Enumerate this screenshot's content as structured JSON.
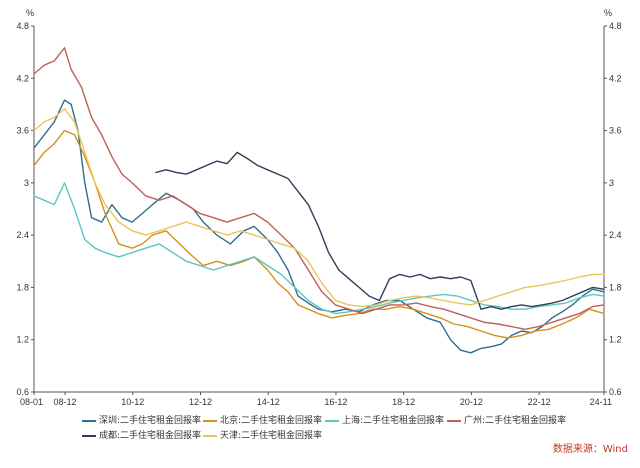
{
  "chart_data": {
    "type": "line",
    "y_unit_left": "%",
    "y_unit_right": "%",
    "ylim": [
      0.6,
      4.8
    ],
    "yticks": [
      "0.6",
      "1.2",
      "1.8",
      "2.4",
      "3",
      "3.6",
      "4.2",
      "4.8"
    ],
    "ytick_values": [
      0.6,
      1.2,
      1.8,
      2.4,
      3.0,
      3.6,
      4.2,
      4.8
    ],
    "x_ticks": [
      "08-01",
      "08-12",
      "10-12",
      "12-12",
      "14-12",
      "16-12",
      "18-12",
      "20-12",
      "22-12",
      "24-11"
    ],
    "x_tick_values": [
      2008.0,
      2008.917,
      2010.917,
      2012.917,
      2014.917,
      2016.917,
      2018.917,
      2020.917,
      2022.917,
      2024.833
    ],
    "xlim": [
      2008.0,
      2024.833
    ],
    "grid": false,
    "legend_position": "bottom",
    "series": [
      {
        "name": "深圳:二手住宅租金回报率",
        "color": "#2e6e8e",
        "x": [
          2008.0,
          2008.3,
          2008.6,
          2008.9,
          2009.1,
          2009.3,
          2009.5,
          2009.7,
          2010.0,
          2010.3,
          2010.6,
          2010.9,
          2011.2,
          2011.5,
          2011.9,
          2012.3,
          2012.7,
          2013.0,
          2013.4,
          2013.8,
          2014.2,
          2014.5,
          2014.9,
          2015.2,
          2015.5,
          2015.8,
          2016.1,
          2016.4,
          2016.8,
          2017.2,
          2017.6,
          2018.0,
          2018.4,
          2018.8,
          2019.2,
          2019.6,
          2020.0,
          2020.3,
          2020.6,
          2020.9,
          2021.2,
          2021.5,
          2021.8,
          2022.1,
          2022.4,
          2022.7,
          2023.0,
          2023.3,
          2023.6,
          2023.9,
          2024.2,
          2024.5,
          2024.833
        ],
        "values": [
          3.4,
          3.55,
          3.7,
          3.95,
          3.9,
          3.6,
          3.0,
          2.6,
          2.55,
          2.75,
          2.6,
          2.55,
          2.65,
          2.75,
          2.88,
          2.8,
          2.7,
          2.55,
          2.4,
          2.3,
          2.45,
          2.5,
          2.35,
          2.2,
          2.0,
          1.7,
          1.62,
          1.55,
          1.52,
          1.55,
          1.52,
          1.6,
          1.65,
          1.65,
          1.55,
          1.45,
          1.4,
          1.2,
          1.08,
          1.05,
          1.1,
          1.12,
          1.15,
          1.25,
          1.3,
          1.28,
          1.35,
          1.45,
          1.52,
          1.6,
          1.7,
          1.78,
          1.75
        ]
      },
      {
        "name": "北京:二手住宅租金回报率",
        "color": "#d4901c",
        "x": [
          2008.0,
          2008.3,
          2008.6,
          2008.9,
          2009.2,
          2009.5,
          2009.8,
          2010.1,
          2010.5,
          2010.9,
          2011.2,
          2011.5,
          2011.9,
          2012.3,
          2012.7,
          2013.0,
          2013.4,
          2013.8,
          2014.2,
          2014.5,
          2014.9,
          2015.2,
          2015.5,
          2015.8,
          2016.1,
          2016.4,
          2016.8,
          2017.2,
          2017.6,
          2018.0,
          2018.4,
          2018.8,
          2019.2,
          2019.6,
          2020.0,
          2020.4,
          2020.8,
          2021.2,
          2021.6,
          2022.0,
          2022.4,
          2022.8,
          2023.2,
          2023.6,
          2024.0,
          2024.4,
          2024.833
        ],
        "values": [
          3.2,
          3.35,
          3.45,
          3.6,
          3.55,
          3.3,
          3.0,
          2.65,
          2.3,
          2.25,
          2.3,
          2.4,
          2.45,
          2.3,
          2.15,
          2.05,
          2.1,
          2.05,
          2.1,
          2.15,
          2.0,
          1.85,
          1.75,
          1.6,
          1.55,
          1.5,
          1.45,
          1.48,
          1.5,
          1.55,
          1.55,
          1.58,
          1.55,
          1.5,
          1.45,
          1.38,
          1.35,
          1.3,
          1.25,
          1.22,
          1.25,
          1.3,
          1.32,
          1.38,
          1.45,
          1.55,
          1.5
        ]
      },
      {
        "name": "上海:二手住宅租金回报率",
        "color": "#5cc6c0",
        "x": [
          2008.0,
          2008.3,
          2008.6,
          2008.9,
          2009.2,
          2009.5,
          2009.8,
          2010.1,
          2010.5,
          2010.9,
          2011.3,
          2011.7,
          2012.1,
          2012.5,
          2012.9,
          2013.3,
          2013.7,
          2014.1,
          2014.5,
          2014.9,
          2015.3,
          2015.7,
          2016.1,
          2016.5,
          2016.9,
          2017.3,
          2017.7,
          2018.1,
          2018.5,
          2018.9,
          2019.3,
          2019.7,
          2020.1,
          2020.5,
          2020.9,
          2021.3,
          2021.7,
          2022.1,
          2022.5,
          2022.9,
          2023.3,
          2023.7,
          2024.1,
          2024.5,
          2024.833
        ],
        "values": [
          2.85,
          2.8,
          2.75,
          3.0,
          2.7,
          2.35,
          2.25,
          2.2,
          2.15,
          2.2,
          2.25,
          2.3,
          2.2,
          2.1,
          2.05,
          2.0,
          2.05,
          2.1,
          2.15,
          2.05,
          1.95,
          1.8,
          1.65,
          1.55,
          1.5,
          1.52,
          1.55,
          1.58,
          1.62,
          1.65,
          1.68,
          1.7,
          1.72,
          1.7,
          1.65,
          1.6,
          1.58,
          1.55,
          1.55,
          1.58,
          1.6,
          1.62,
          1.68,
          1.72,
          1.7
        ]
      },
      {
        "name": "广州:二手住宅租金回报率",
        "color": "#c0605a",
        "x": [
          2008.0,
          2008.3,
          2008.6,
          2008.9,
          2009.1,
          2009.4,
          2009.7,
          2010.0,
          2010.3,
          2010.6,
          2010.9,
          2011.3,
          2011.7,
          2012.1,
          2012.5,
          2012.9,
          2013.3,
          2013.7,
          2014.1,
          2014.5,
          2014.9,
          2015.3,
          2015.7,
          2016.1,
          2016.5,
          2016.9,
          2017.3,
          2017.7,
          2018.1,
          2018.5,
          2018.9,
          2019.3,
          2019.7,
          2020.1,
          2020.5,
          2020.9,
          2021.3,
          2021.7,
          2022.1,
          2022.5,
          2022.9,
          2023.3,
          2023.7,
          2024.1,
          2024.5,
          2024.833
        ],
        "values": [
          4.25,
          4.35,
          4.4,
          4.55,
          4.3,
          4.1,
          3.75,
          3.55,
          3.3,
          3.1,
          3.0,
          2.85,
          2.8,
          2.85,
          2.75,
          2.65,
          2.6,
          2.55,
          2.6,
          2.65,
          2.55,
          2.4,
          2.25,
          2.0,
          1.75,
          1.6,
          1.55,
          1.5,
          1.55,
          1.6,
          1.6,
          1.62,
          1.58,
          1.55,
          1.5,
          1.45,
          1.4,
          1.38,
          1.35,
          1.32,
          1.35,
          1.4,
          1.45,
          1.5,
          1.58,
          1.6
        ]
      },
      {
        "name": "成都:二手住宅租金回报率",
        "color": "#2e3e5c",
        "x": [
          2011.6,
          2011.9,
          2012.2,
          2012.5,
          2012.8,
          2013.1,
          2013.4,
          2013.7,
          2014.0,
          2014.3,
          2014.6,
          2014.9,
          2015.2,
          2015.5,
          2015.8,
          2016.1,
          2016.4,
          2016.7,
          2017.0,
          2017.3,
          2017.6,
          2017.9,
          2018.2,
          2018.5,
          2018.8,
          2019.1,
          2019.4,
          2019.7,
          2020.0,
          2020.3,
          2020.6,
          2020.9,
          2021.2,
          2021.5,
          2021.8,
          2022.1,
          2022.4,
          2022.7,
          2023.0,
          2023.3,
          2023.6,
          2023.9,
          2024.2,
          2024.5,
          2024.833
        ],
        "values": [
          3.12,
          3.15,
          3.12,
          3.1,
          3.15,
          3.2,
          3.25,
          3.22,
          3.35,
          3.28,
          3.2,
          3.15,
          3.1,
          3.05,
          2.9,
          2.75,
          2.5,
          2.2,
          2.0,
          1.9,
          1.8,
          1.7,
          1.65,
          1.9,
          1.95,
          1.92,
          1.95,
          1.9,
          1.92,
          1.9,
          1.92,
          1.88,
          1.55,
          1.58,
          1.55,
          1.58,
          1.6,
          1.58,
          1.6,
          1.62,
          1.65,
          1.7,
          1.75,
          1.8,
          1.78
        ]
      },
      {
        "name": "天津:二手住宅租金回报率",
        "color": "#e8c65a",
        "x": [
          2008.0,
          2008.3,
          2008.6,
          2008.9,
          2009.2,
          2009.5,
          2009.8,
          2010.1,
          2010.5,
          2010.9,
          2011.3,
          2011.7,
          2012.1,
          2012.5,
          2012.9,
          2013.3,
          2013.7,
          2014.1,
          2014.5,
          2014.9,
          2015.3,
          2015.7,
          2016.1,
          2016.5,
          2016.9,
          2017.3,
          2017.7,
          2018.1,
          2018.5,
          2018.9,
          2019.3,
          2019.7,
          2020.1,
          2020.5,
          2020.9,
          2021.3,
          2021.7,
          2022.1,
          2022.5,
          2022.9,
          2023.3,
          2023.7,
          2024.1,
          2024.5,
          2024.833
        ],
        "values": [
          3.6,
          3.7,
          3.75,
          3.85,
          3.7,
          3.35,
          3.0,
          2.75,
          2.55,
          2.45,
          2.4,
          2.45,
          2.5,
          2.55,
          2.5,
          2.45,
          2.4,
          2.45,
          2.4,
          2.35,
          2.3,
          2.25,
          2.1,
          1.85,
          1.65,
          1.6,
          1.58,
          1.6,
          1.65,
          1.68,
          1.7,
          1.68,
          1.65,
          1.62,
          1.6,
          1.65,
          1.7,
          1.75,
          1.8,
          1.82,
          1.85,
          1.88,
          1.92,
          1.95,
          1.95
        ]
      }
    ]
  },
  "source_note": "数据来源：Wind"
}
